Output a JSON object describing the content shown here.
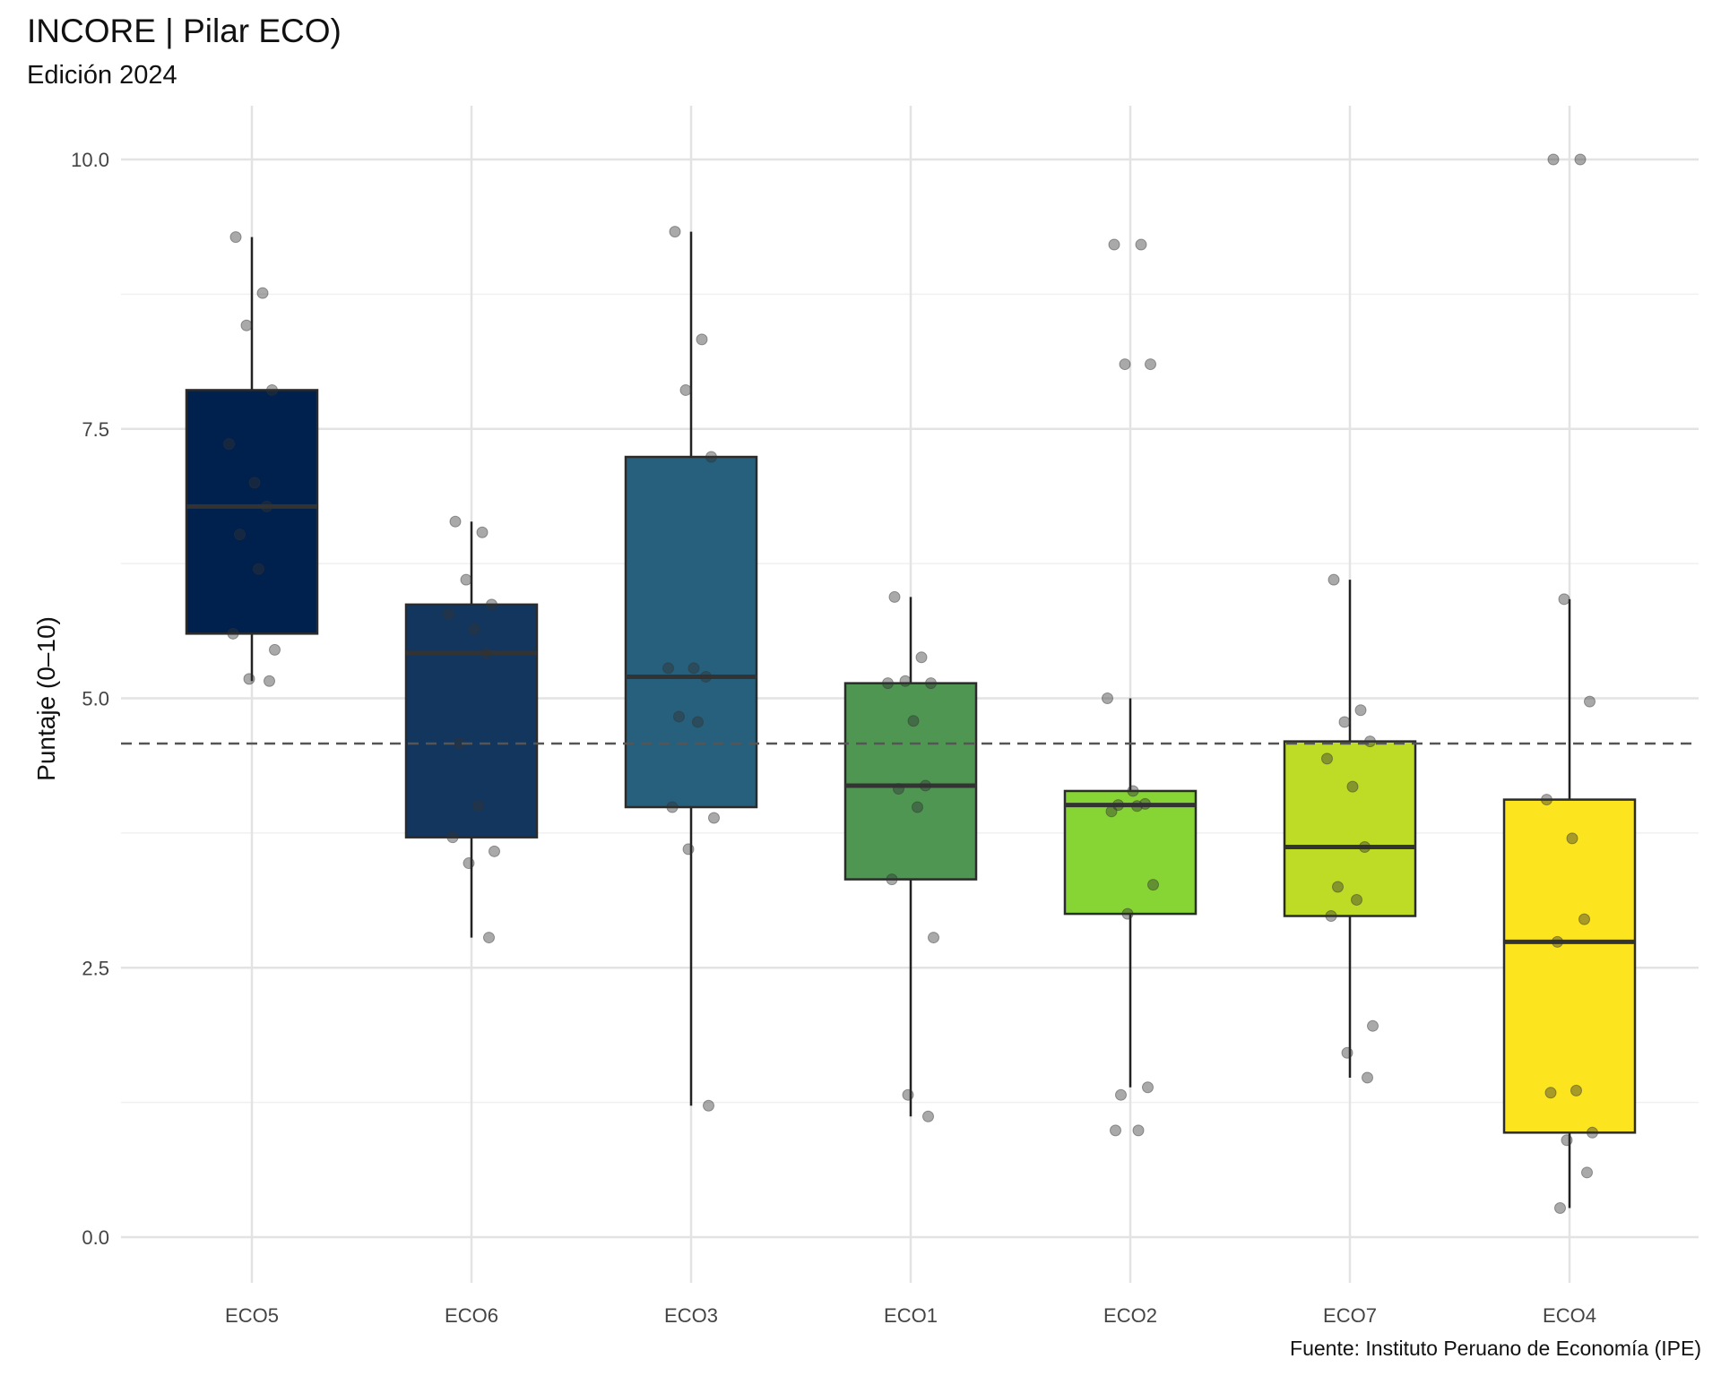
{
  "title": "INCORE | Pilar ECO)",
  "subtitle": "Edición 2024",
  "caption": "Fuente: Instituto Peruano de Economía (IPE)",
  "ylabel": "Puntaje (0–10)",
  "chart_data": {
    "type": "boxplot",
    "title": "INCORE | Pilar ECO)",
    "subtitle": "Edición 2024",
    "xlabel": "",
    "ylabel": "Puntaje (0–10)",
    "ylim": [
      -0.5,
      10.5
    ],
    "yticks": [
      "0.0",
      "2.5",
      "5.0",
      "7.5",
      "10.0"
    ],
    "reference_line": 4.58,
    "categories": [
      "ECO5",
      "ECO6",
      "ECO3",
      "ECO1",
      "ECO2",
      "ECO7",
      "ECO4"
    ],
    "boxes": [
      {
        "name": "ECO5",
        "color": "#00204d",
        "min": 5.16,
        "q1": 5.6,
        "median": 6.78,
        "q3": 7.86,
        "max": 9.28
      },
      {
        "name": "ECO6",
        "color": "#13365f",
        "min": 2.78,
        "q1": 3.71,
        "median": 5.42,
        "q3": 5.87,
        "max": 6.64
      },
      {
        "name": "ECO3",
        "color": "#26607c",
        "min": 1.22,
        "q1": 3.99,
        "median": 5.2,
        "q3": 7.24,
        "max": 9.33
      },
      {
        "name": "ECO1",
        "color": "#4f9653",
        "min": 1.12,
        "q1": 3.32,
        "median": 4.19,
        "q3": 5.14,
        "max": 5.94
      },
      {
        "name": "ECO2",
        "color": "#87d534",
        "min": 1.39,
        "q1": 3.0,
        "median": 4.01,
        "q3": 4.14,
        "max": 5.0
      },
      {
        "name": "ECO7",
        "color": "#bedc26",
        "min": 1.48,
        "q1": 2.98,
        "median": 3.62,
        "q3": 4.6,
        "max": 6.1
      },
      {
        "name": "ECO4",
        "color": "#fce51f",
        "min": 0.27,
        "q1": 0.97,
        "median": 2.74,
        "q3": 4.06,
        "max": 5.92
      }
    ],
    "points": [
      {
        "category": "ECO5",
        "values": [
          9.28,
          8.76,
          8.46,
          7.86,
          7.36,
          7.0,
          6.78,
          6.52,
          6.2,
          5.6,
          5.45,
          5.18,
          5.16
        ]
      },
      {
        "category": "ECO6",
        "values": [
          6.64,
          6.54,
          6.1,
          5.87,
          5.78,
          5.64,
          5.42,
          4.58,
          4.0,
          3.71,
          3.58,
          3.47,
          2.78
        ]
      },
      {
        "category": "ECO3",
        "values": [
          9.33,
          8.33,
          7.86,
          7.24,
          5.28,
          5.28,
          5.2,
          4.83,
          4.78,
          3.99,
          3.89,
          3.6,
          1.22
        ]
      },
      {
        "category": "ECO1",
        "values": [
          5.94,
          5.38,
          5.16,
          5.14,
          5.14,
          4.79,
          4.19,
          4.16,
          3.99,
          3.32,
          2.78,
          1.32,
          1.12
        ]
      },
      {
        "category": "ECO2",
        "values": [
          9.21,
          9.21,
          8.1,
          8.1,
          5.0,
          4.14,
          4.02,
          4.01,
          4.0,
          3.95,
          3.27,
          3.0,
          1.39,
          1.32,
          0.99,
          0.99
        ]
      },
      {
        "category": "ECO7",
        "values": [
          6.1,
          4.89,
          4.78,
          4.6,
          4.44,
          4.18,
          3.62,
          3.25,
          3.13,
          2.98,
          1.96,
          1.71,
          1.48
        ]
      },
      {
        "category": "ECO4",
        "values": [
          10.0,
          10.0,
          5.92,
          4.97,
          4.06,
          3.7,
          2.95,
          2.74,
          1.36,
          1.34,
          0.97,
          0.9,
          0.6,
          0.27
        ]
      }
    ],
    "grid": true,
    "legend": "none"
  }
}
